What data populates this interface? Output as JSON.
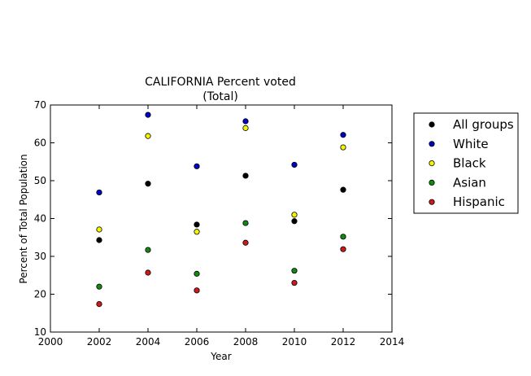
{
  "chart_data": {
    "type": "scatter",
    "title": "CALIFORNIA Percent voted",
    "subtitle": "(Total)",
    "xlabel": "Year",
    "ylabel": "Percent of Total Population",
    "xlim": [
      2000,
      2014
    ],
    "ylim": [
      10,
      70
    ],
    "xticks": [
      "2000",
      "2002",
      "2004",
      "2006",
      "2008",
      "2010",
      "2012",
      "2014"
    ],
    "yticks": [
      "10",
      "20",
      "30",
      "40",
      "50",
      "60",
      "70"
    ],
    "grid": false,
    "legend_position": "outside-right",
    "x": [
      2002,
      2004,
      2006,
      2008,
      2010,
      2012
    ],
    "series": [
      {
        "name": "All groups",
        "color": "#000000",
        "values": [
          34.3,
          49.2,
          38.4,
          51.3,
          39.3,
          47.6
        ]
      },
      {
        "name": "White",
        "color": "#0000c8",
        "values": [
          46.9,
          67.4,
          53.8,
          65.7,
          54.2,
          62.1
        ]
      },
      {
        "name": "Black",
        "color": "#f5f500",
        "values": [
          37.1,
          61.8,
          36.5,
          63.9,
          41.0,
          58.8
        ]
      },
      {
        "name": "Asian",
        "color": "#118a11",
        "values": [
          22.0,
          31.7,
          25.4,
          38.8,
          26.2,
          35.2
        ]
      },
      {
        "name": "Hispanic",
        "color": "#cc1a1a",
        "values": [
          17.4,
          25.7,
          21.0,
          33.6,
          23.0,
          31.9
        ]
      }
    ]
  }
}
